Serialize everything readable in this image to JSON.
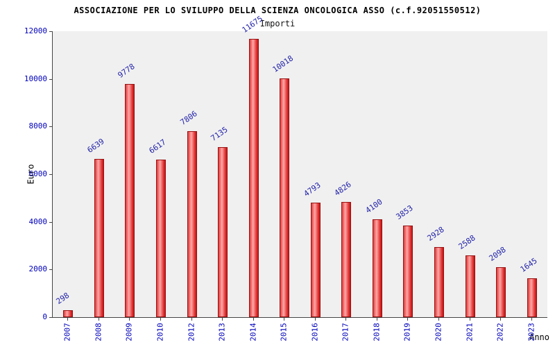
{
  "chart_data": {
    "type": "bar",
    "title": "ASSOCIAZIONE PER LO SVILUPPO DELLA SCIENZA ONCOLOGICA ASSO (c.f.92051550512)",
    "subtitle": "Importi",
    "xlabel": "Anno",
    "ylabel": "Euro",
    "categories": [
      "2007",
      "2008",
      "2009",
      "2010",
      "2012",
      "2013",
      "2014",
      "2015",
      "2016",
      "2017",
      "2018",
      "2019",
      "2020",
      "2021",
      "2022",
      "2023"
    ],
    "values": [
      298,
      6639,
      9778,
      6617,
      7806,
      7135,
      11675,
      10018,
      4793,
      4826,
      4100,
      3853,
      2928,
      2588,
      2098,
      1645
    ],
    "ylim": [
      0,
      12000
    ],
    "ytick_step": 2000,
    "grid": "off",
    "legend": "none",
    "plot_bg_color": "#f0f0f0",
    "bar_color": "#e23b3b",
    "bar_border_color": "#991111",
    "value_label_color": "#2222aa",
    "axis_text_color": "#0000bb"
  }
}
